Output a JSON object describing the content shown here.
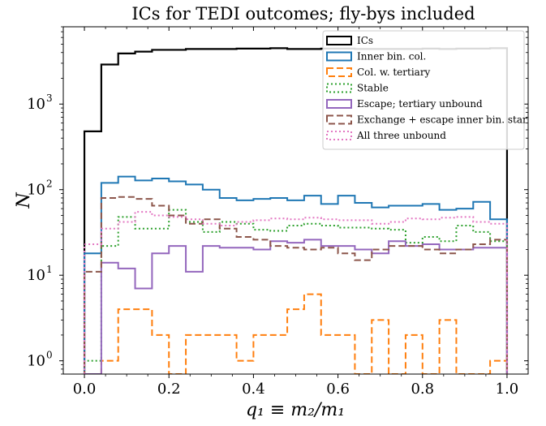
{
  "chart_data": {
    "type": "histogram-step",
    "title": "ICs for TEDI outcomes; fly-bys included",
    "xlabel": "q₁ ≡ m₂/m₁",
    "ylabel": "N",
    "xlim": [
      -0.05,
      1.05
    ],
    "ylim": [
      0.7,
      8000
    ],
    "yscale": "log",
    "x_ticks": [
      0.0,
      0.2,
      0.4,
      0.6,
      0.8,
      1.0
    ],
    "x_tick_labels": [
      "0.0",
      "0.2",
      "0.4",
      "0.6",
      "0.8",
      "1.0"
    ],
    "y_ticks": [
      1,
      10,
      100,
      1000
    ],
    "y_tick_labels": [
      "10",
      "10",
      "10",
      "10"
    ],
    "y_tick_exponents": [
      "0",
      "1",
      "2",
      "3"
    ],
    "legend_position": "top-right",
    "bin_edges": [
      0.0,
      0.04,
      0.08,
      0.12,
      0.16,
      0.2,
      0.24,
      0.28,
      0.32,
      0.36,
      0.4,
      0.44,
      0.48,
      0.52,
      0.56,
      0.6,
      0.64,
      0.68,
      0.72,
      0.76,
      0.8,
      0.84,
      0.88,
      0.92,
      0.96,
      1.0
    ],
    "series": [
      {
        "name": "ICs",
        "color": "#000000",
        "dash": "solid",
        "values": [
          480,
          2900,
          3900,
          4100,
          4300,
          4300,
          4400,
          4400,
          4400,
          4450,
          4450,
          4500,
          4400,
          4400,
          4450,
          4450,
          4400,
          4400,
          4400,
          4400,
          4450,
          4400,
          4450,
          4450,
          4500
        ]
      },
      {
        "name": "Inner bin. col.",
        "color": "#1f77b4",
        "dash": "solid",
        "values": [
          18,
          120,
          142,
          128,
          135,
          125,
          115,
          100,
          80,
          75,
          78,
          80,
          75,
          85,
          68,
          85,
          70,
          62,
          65,
          65,
          68,
          58,
          60,
          72,
          45
        ]
      },
      {
        "name": "Col. w. tertiary",
        "color": "#ff7f0e",
        "dash": "dashed",
        "values": [
          0.7,
          1,
          4,
          4,
          2,
          0.7,
          2,
          2,
          2,
          1,
          2,
          2,
          4,
          6,
          2,
          2,
          0.7,
          3,
          0.7,
          2,
          0.7,
          3,
          0.7,
          0.7,
          1
        ]
      },
      {
        "name": "Stable",
        "color": "#2ca02c",
        "dash": "dotted",
        "values": [
          1,
          22,
          48,
          35,
          35,
          58,
          42,
          32,
          42,
          40,
          34,
          33,
          38,
          40,
          38,
          36,
          36,
          35,
          34,
          24,
          28,
          25,
          38,
          32,
          25
        ]
      },
      {
        "name": "Escape; tertiary unbound",
        "color": "#9467bd",
        "dash": "solid",
        "values": [
          0.7,
          14,
          12,
          7,
          18,
          22,
          11,
          22,
          21,
          21,
          20,
          25,
          24,
          26,
          22,
          22,
          20,
          18,
          25,
          22,
          23,
          20,
          20,
          21,
          21
        ]
      },
      {
        "name": "Exchange + escape inner bin. star",
        "color": "#8c564b",
        "dash": "dashed",
        "values": [
          11,
          80,
          82,
          78,
          65,
          50,
          40,
          45,
          35,
          28,
          26,
          22,
          21,
          20,
          21,
          18,
          15,
          20,
          22,
          22,
          20,
          18,
          20,
          23,
          26
        ]
      },
      {
        "name": "All three unbound",
        "color": "#e377c2",
        "dash": "dotted",
        "values": [
          23,
          35,
          42,
          55,
          50,
          48,
          45,
          40,
          38,
          42,
          44,
          46,
          45,
          47,
          45,
          44,
          44,
          40,
          42,
          46,
          45,
          47,
          48,
          42,
          40
        ]
      }
    ]
  }
}
